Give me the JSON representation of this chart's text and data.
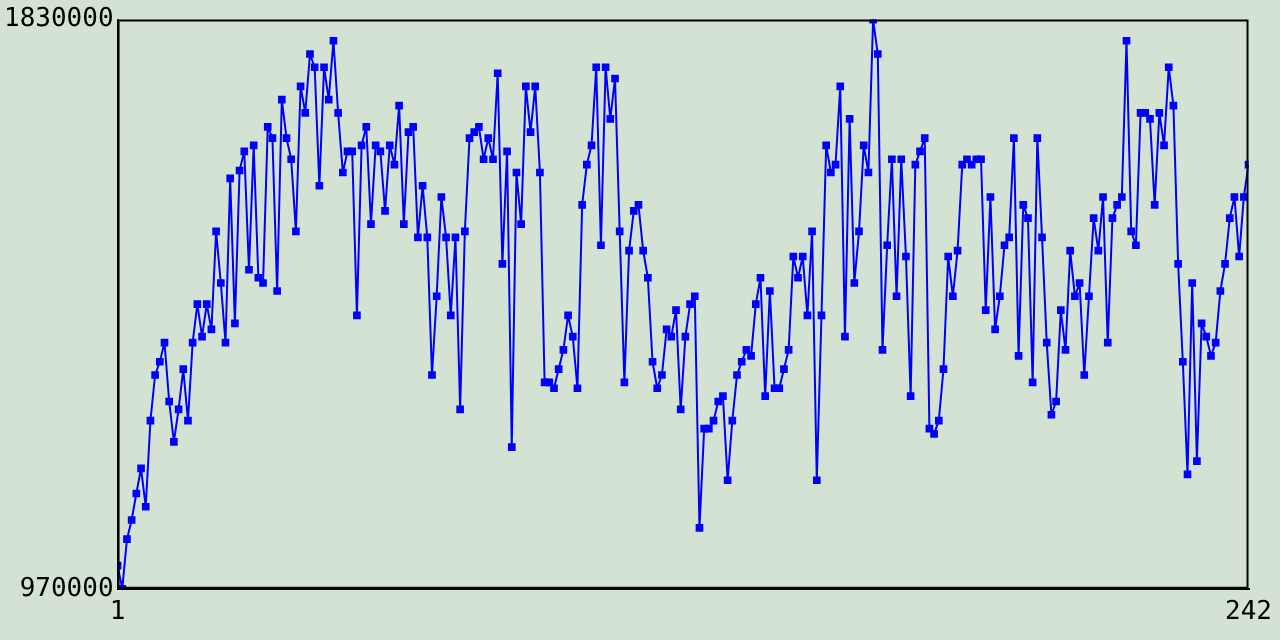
{
  "chart_data": {
    "type": "line",
    "x": [
      1,
      2,
      3,
      4,
      5,
      6,
      7,
      8,
      9,
      10,
      11,
      12,
      13,
      14,
      15,
      16,
      17,
      18,
      19,
      20,
      21,
      22,
      23,
      24,
      25,
      26,
      27,
      28,
      29,
      30,
      31,
      32,
      33,
      34,
      35,
      36,
      37,
      38,
      39,
      40,
      41,
      42,
      43,
      44,
      45,
      46,
      47,
      48,
      49,
      50,
      51,
      52,
      53,
      54,
      55,
      56,
      57,
      58,
      59,
      60,
      61,
      62,
      63,
      64,
      65,
      66,
      67,
      68,
      69,
      70,
      71,
      72,
      73,
      74,
      75,
      76,
      77,
      78,
      79,
      80,
      81,
      82,
      83,
      84,
      85,
      86,
      87,
      88,
      89,
      90,
      91,
      92,
      93,
      94,
      95,
      96,
      97,
      98,
      99,
      100,
      101,
      102,
      103,
      104,
      105,
      106,
      107,
      108,
      109,
      110,
      111,
      112,
      113,
      114,
      115,
      116,
      117,
      118,
      119,
      120,
      121,
      122,
      123,
      124,
      125,
      126,
      127,
      128,
      129,
      130,
      131,
      132,
      133,
      134,
      135,
      136,
      137,
      138,
      139,
      140,
      141,
      142,
      143,
      144,
      145,
      146,
      147,
      148,
      149,
      150,
      151,
      152,
      153,
      154,
      155,
      156,
      157,
      158,
      159,
      160,
      161,
      162,
      163,
      164,
      165,
      166,
      167,
      168,
      169,
      170,
      171,
      172,
      173,
      174,
      175,
      176,
      177,
      178,
      179,
      180,
      181,
      182,
      183,
      184,
      185,
      186,
      187,
      188,
      189,
      190,
      191,
      192,
      193,
      194,
      195,
      196,
      197,
      198,
      199,
      200,
      201,
      202,
      203,
      204,
      205,
      206,
      207,
      208,
      209,
      210,
      211,
      212,
      213,
      214,
      215,
      216,
      217,
      218,
      219,
      220,
      221,
      222,
      223,
      224,
      225,
      226,
      227,
      228,
      229,
      230,
      231,
      232,
      233,
      234,
      235,
      236,
      237,
      238,
      239,
      240,
      241,
      242
    ],
    "series": [
      {
        "color": "#0000ff",
        "values": [
          1005000,
          970000,
          1045000,
          1074000,
          1114000,
          1152000,
          1094000,
          1224000,
          1293000,
          1313000,
          1342000,
          1253000,
          1192000,
          1241000,
          1302000,
          1224000,
          1342000,
          1400000,
          1351000,
          1400000,
          1362000,
          1510000,
          1432000,
          1342000,
          1590000,
          1371000,
          1602000,
          1631000,
          1452000,
          1640000,
          1440000,
          1432000,
          1668000,
          1651000,
          1420000,
          1709000,
          1651000,
          1619000,
          1510000,
          1729000,
          1689000,
          1778000,
          1758000,
          1579000,
          1758000,
          1709000,
          1798000,
          1689000,
          1599000,
          1631000,
          1631000,
          1383000,
          1640000,
          1668000,
          1521000,
          1640000,
          1631000,
          1541000,
          1640000,
          1611000,
          1700000,
          1521000,
          1660000,
          1668000,
          1501000,
          1579000,
          1501000,
          1293000,
          1412000,
          1562000,
          1501000,
          1383000,
          1501000,
          1241000,
          1510000,
          1651000,
          1660000,
          1668000,
          1619000,
          1651000,
          1619000,
          1749000,
          1461000,
          1631000,
          1184000,
          1599000,
          1521000,
          1729000,
          1660000,
          1729000,
          1599000,
          1282000,
          1282000,
          1273000,
          1302000,
          1331000,
          1383000,
          1351000,
          1273000,
          1550000,
          1611000,
          1640000,
          1758000,
          1489000,
          1758000,
          1680000,
          1741000,
          1510000,
          1282000,
          1481000,
          1541000,
          1550000,
          1481000,
          1440000,
          1313000,
          1273000,
          1293000,
          1362000,
          1351000,
          1391000,
          1241000,
          1351000,
          1400000,
          1412000,
          1062000,
          1212000,
          1212000,
          1224000,
          1253000,
          1261000,
          1134000,
          1224000,
          1293000,
          1313000,
          1331000,
          1322000,
          1400000,
          1440000,
          1261000,
          1420000,
          1273000,
          1273000,
          1302000,
          1331000,
          1472000,
          1440000,
          1472000,
          1383000,
          1510000,
          1134000,
          1383000,
          1640000,
          1599000,
          1611000,
          1729000,
          1351000,
          1680000,
          1432000,
          1510000,
          1640000,
          1599000,
          1830000,
          1778000,
          1331000,
          1489000,
          1619000,
          1412000,
          1619000,
          1472000,
          1261000,
          1611000,
          1631000,
          1651000,
          1212000,
          1204000,
          1224000,
          1302000,
          1472000,
          1412000,
          1481000,
          1611000,
          1619000,
          1611000,
          1619000,
          1619000,
          1391000,
          1562000,
          1362000,
          1412000,
          1489000,
          1501000,
          1651000,
          1322000,
          1550000,
          1530000,
          1282000,
          1651000,
          1501000,
          1342000,
          1233000,
          1253000,
          1391000,
          1331000,
          1481000,
          1412000,
          1432000,
          1293000,
          1412000,
          1530000,
          1481000,
          1562000,
          1342000,
          1530000,
          1550000,
          1562000,
          1798000,
          1510000,
          1489000,
          1689000,
          1689000,
          1680000,
          1550000,
          1689000,
          1640000,
          1758000,
          1700000,
          1461000,
          1313000,
          1143000,
          1432000,
          1163000,
          1371000,
          1351000,
          1322000,
          1342000,
          1420000,
          1461000,
          1530000,
          1562000,
          1472000,
          1562000,
          1611000
        ]
      }
    ],
    "xlim": [
      1,
      242
    ],
    "xticks": [
      1,
      242
    ],
    "ylim": [
      970000,
      1830000
    ],
    "yticks": [
      970000,
      1830000
    ],
    "grid": false,
    "legend": false,
    "marker": "square",
    "line_style": "solid"
  }
}
